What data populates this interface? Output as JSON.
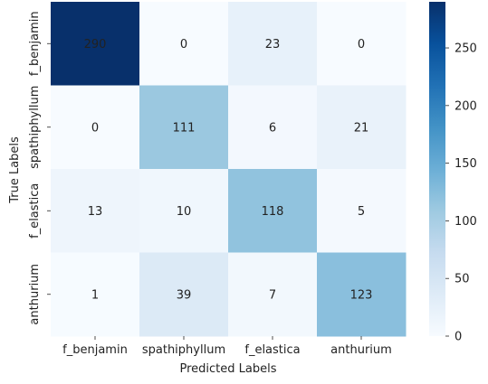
{
  "chart_data": {
    "type": "heatmap",
    "xlabel": "Predicted Labels",
    "ylabel": "True Labels",
    "x_categories": [
      "f_benjamin",
      "spathiphyllum",
      "f_elastica",
      "anthurium"
    ],
    "y_categories": [
      "f_benjamin",
      "spathiphyllum",
      "f_elastica",
      "anthurium"
    ],
    "values": [
      [
        290,
        0,
        23,
        0
      ],
      [
        0,
        111,
        6,
        21
      ],
      [
        13,
        10,
        118,
        5
      ],
      [
        1,
        39,
        7,
        123
      ]
    ],
    "colormap": "Blues",
    "color_range": [
      0,
      290
    ],
    "colorbar_ticks": [
      0,
      50,
      100,
      150,
      200,
      250
    ],
    "colorbar_tick_labels": [
      "0",
      "50",
      "100",
      "150",
      "200",
      "250"
    ]
  }
}
